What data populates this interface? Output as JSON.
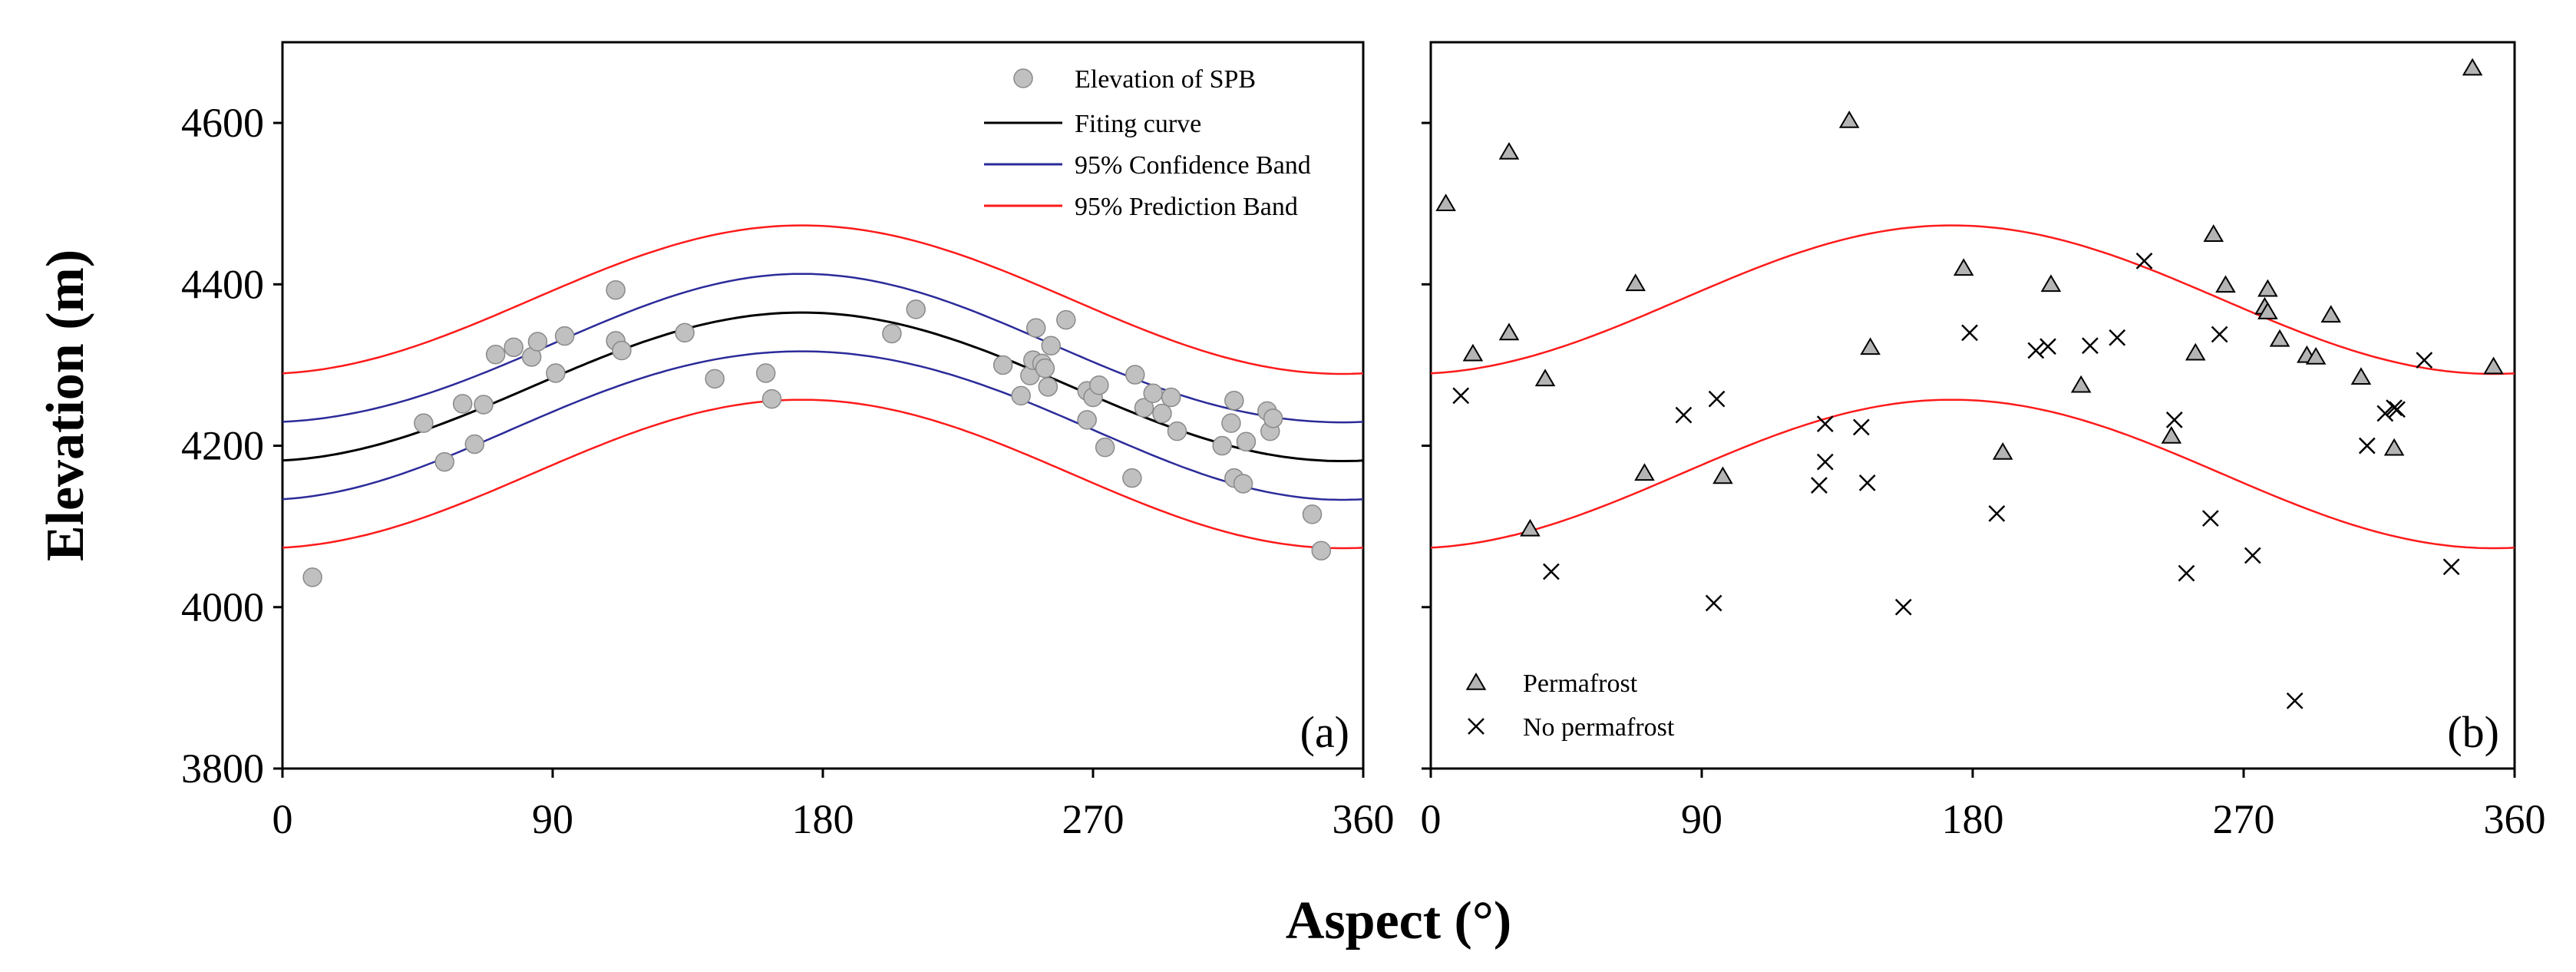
{
  "chart_data": {
    "type": "scatter",
    "xlabel": "Aspect (°)",
    "ylabel": "Elevation (m)",
    "xlim": [
      0,
      360
    ],
    "ylim": [
      3800,
      4700
    ],
    "xticks": [
      0,
      90,
      180,
      270,
      360
    ],
    "yticks": [
      3800,
      4000,
      4200,
      4400,
      4600
    ],
    "curve_model": {
      "description": "y = a + b * sin(2*pi*(x - phase)/360)",
      "fit": {
        "a": 4273,
        "b": 92,
        "phase": 83
      },
      "confidence_half_width": {
        "center": 42,
        "edge": 48
      },
      "prediction_half_width": 108
    },
    "panels": [
      {
        "label": "(a)",
        "legend": {
          "position": "top-right",
          "entries": [
            {
              "label": "Elevation of SPB",
              "marker": "circle"
            },
            {
              "label": "Fiting curve",
              "marker": "line",
              "color": "#000000"
            },
            {
              "label": "95% Confidence Band",
              "marker": "line",
              "color": "#2b2b9a"
            },
            {
              "label": "95% Prediction Band",
              "marker": "line",
              "color": "#ff1a1a"
            }
          ]
        },
        "series": [
          {
            "name": "Elevation of SPB",
            "marker": "circle",
            "points": [
              [
                10,
                4037
              ],
              [
                47,
                4228
              ],
              [
                54,
                4180
              ],
              [
                60,
                4252
              ],
              [
                64,
                4202
              ],
              [
                67,
                4251
              ],
              [
                71,
                4313
              ],
              [
                77,
                4322
              ],
              [
                83,
                4310
              ],
              [
                85,
                4329
              ],
              [
                91,
                4290
              ],
              [
                94,
                4336
              ],
              [
                111,
                4393
              ],
              [
                111,
                4330
              ],
              [
                113,
                4318
              ],
              [
                134,
                4340
              ],
              [
                144,
                4283
              ],
              [
                161,
                4290
              ],
              [
                163,
                4258
              ],
              [
                203,
                4339
              ],
              [
                211,
                4369
              ],
              [
                240,
                4300
              ],
              [
                246,
                4262
              ],
              [
                249,
                4287
              ],
              [
                250,
                4306
              ],
              [
                251,
                4346
              ],
              [
                253,
                4302
              ],
              [
                254,
                4296
              ],
              [
                255,
                4273
              ],
              [
                256,
                4324
              ],
              [
                261,
                4356
              ],
              [
                268,
                4268
              ],
              [
                268,
                4232
              ],
              [
                270,
                4260
              ],
              [
                272,
                4275
              ],
              [
                274,
                4198
              ],
              [
                283,
                4160
              ],
              [
                284,
                4288
              ],
              [
                287,
                4247
              ],
              [
                290,
                4265
              ],
              [
                293,
                4240
              ],
              [
                296,
                4260
              ],
              [
                298,
                4218
              ],
              [
                313,
                4200
              ],
              [
                316,
                4228
              ],
              [
                317,
                4256
              ],
              [
                317,
                4160
              ],
              [
                320,
                4153
              ],
              [
                321,
                4205
              ],
              [
                328,
                4243
              ],
              [
                329,
                4218
              ],
              [
                330,
                4234
              ],
              [
                343,
                4115
              ],
              [
                346,
                4070
              ]
            ]
          }
        ]
      },
      {
        "label": "(b)",
        "legend": {
          "position": "bottom-left",
          "entries": [
            {
              "label": "Permafrost",
              "marker": "triangle"
            },
            {
              "label": "No permafrost",
              "marker": "x"
            }
          ]
        },
        "series": [
          {
            "name": "Permafrost",
            "marker": "triangle",
            "points": [
              [
                5,
                4500
              ],
              [
                14,
                4314
              ],
              [
                26,
                4564
              ],
              [
                26,
                4340
              ],
              [
                33,
                4097
              ],
              [
                38,
                4283
              ],
              [
                68,
                4401
              ],
              [
                71,
                4166
              ],
              [
                97,
                4162
              ],
              [
                139,
                4603
              ],
              [
                146,
                4322
              ],
              [
                177,
                4420
              ],
              [
                190,
                4192
              ],
              [
                206,
                4400
              ],
              [
                216,
                4275
              ],
              [
                246,
                4212
              ],
              [
                254,
                4315
              ],
              [
                260,
                4462
              ],
              [
                264,
                4399
              ],
              [
                277,
                4372
              ],
              [
                278,
                4394
              ],
              [
                278,
                4366
              ],
              [
                282,
                4332
              ],
              [
                291,
                4312
              ],
              [
                294,
                4310
              ],
              [
                299,
                4362
              ],
              [
                309,
                4285
              ],
              [
                320,
                4197
              ],
              [
                346,
                4668
              ],
              [
                353,
                4298
              ]
            ]
          },
          {
            "name": "No permafrost",
            "marker": "x",
            "points": [
              [
                10,
                4262
              ],
              [
                40,
                4044
              ],
              [
                84,
                4238
              ],
              [
                94,
                4005
              ],
              [
                95,
                4258
              ],
              [
                129,
                4151
              ],
              [
                131,
                4227
              ],
              [
                131,
                4180
              ],
              [
                143,
                4223
              ],
              [
                145,
                4154
              ],
              [
                157,
                4000
              ],
              [
                179,
                4340
              ],
              [
                188,
                4116
              ],
              [
                201,
                4318
              ],
              [
                205,
                4323
              ],
              [
                219,
                4324
              ],
              [
                228,
                4334
              ],
              [
                237,
                4429
              ],
              [
                247,
                4232
              ],
              [
                251,
                4042
              ],
              [
                259,
                4110
              ],
              [
                262,
                4338
              ],
              [
                273,
                4064
              ],
              [
                287,
                3884
              ],
              [
                311,
                4200
              ],
              [
                317,
                4240
              ],
              [
                320,
                4247
              ],
              [
                321,
                4245
              ],
              [
                330,
                4306
              ],
              [
                339,
                4050
              ]
            ]
          }
        ]
      }
    ]
  }
}
